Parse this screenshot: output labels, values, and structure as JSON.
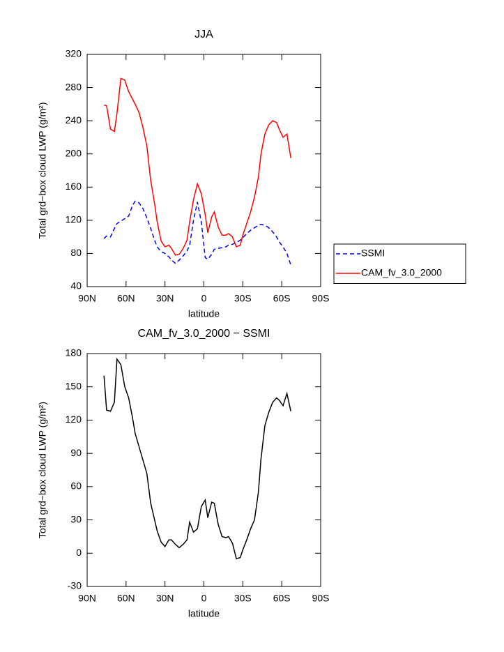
{
  "chart_data": [
    {
      "type": "line",
      "title": "JJA",
      "xlabel": "latitude",
      "ylabel": "Total grd−box cloud LWP (g/m²)",
      "x": [
        77,
        75,
        72,
        69,
        67,
        64,
        61,
        58,
        55,
        53,
        50,
        47,
        44,
        41,
        38,
        36,
        33,
        30,
        27,
        25,
        22,
        19,
        16,
        13,
        11,
        8,
        5,
        2,
        -1,
        -3,
        -6,
        -8,
        -11,
        -14,
        -17,
        -19,
        -22,
        -25,
        -28,
        -30,
        -33,
        -36,
        -39,
        -42,
        -44,
        -47,
        -50,
        -53,
        -56,
        -58,
        -61,
        -64,
        -67
      ],
      "series": [
        {
          "name": "SSMI",
          "color": "#0000ff",
          "line_style": "dashed",
          "values": [
            98,
            101,
            100,
            110,
            116,
            119,
            122,
            125,
            138,
            143,
            141,
            134,
            123,
            110,
            96,
            88,
            82,
            80,
            76,
            72,
            68,
            72,
            77,
            83,
            90,
            120,
            142,
            118,
            75,
            73,
            79,
            85,
            86,
            87,
            88,
            90,
            91,
            93,
            96,
            99,
            104,
            108,
            111,
            114,
            115,
            114,
            111,
            106,
            100,
            94,
            88,
            80,
            66
          ]
        },
        {
          "name": "CAM_fv_3.0_2000",
          "color": "#ff0000",
          "line_style": "solid",
          "values": [
            259,
            258,
            230,
            227,
            249,
            291,
            289,
            275,
            266,
            260,
            250,
            232,
            210,
            168,
            140,
            118,
            95,
            88,
            90,
            86,
            78,
            79,
            86,
            96,
            118,
            145,
            164,
            152,
            127,
            105,
            124,
            130,
            112,
            102,
            102,
            104,
            100,
            88,
            90,
            102,
            116,
            130,
            148,
            172,
            200,
            224,
            235,
            240,
            238,
            230,
            220,
            224,
            195
          ]
        }
      ],
      "xlim": [
        90,
        -90
      ],
      "xticks": [
        {
          "value": 90,
          "label": "90N"
        },
        {
          "value": 60,
          "label": "60N"
        },
        {
          "value": 30,
          "label": "30N"
        },
        0,
        {
          "value": -30,
          "label": "30S"
        },
        {
          "value": -60,
          "label": "60S"
        },
        {
          "value": -90,
          "label": "90S"
        }
      ],
      "ylim": [
        40,
        320
      ],
      "yticks": [
        40,
        80,
        120,
        160,
        200,
        240,
        280,
        320
      ],
      "legend": "right"
    },
    {
      "type": "line",
      "title": "CAM_fv_3.0_2000 − SSMI",
      "xlabel": "latitude",
      "ylabel": "Total grd−box cloud LWP (g/m²)",
      "x": [
        77,
        75,
        72,
        69,
        67,
        64,
        61,
        58,
        55,
        53,
        50,
        47,
        44,
        41,
        38,
        36,
        33,
        30,
        27,
        25,
        22,
        19,
        16,
        13,
        11,
        8,
        5,
        2,
        -1,
        -3,
        -6,
        -8,
        -11,
        -14,
        -17,
        -19,
        -22,
        -25,
        -28,
        -30,
        -33,
        -36,
        -39,
        -42,
        -44,
        -47,
        -50,
        -53,
        -56,
        -58,
        -61,
        -64,
        -67
      ],
      "values": [
        160,
        129,
        128,
        136,
        175,
        170,
        150,
        140,
        122,
        108,
        96,
        84,
        72,
        45,
        30,
        20,
        10,
        6,
        12,
        12,
        8,
        5,
        8,
        12,
        28,
        19,
        22,
        42,
        48,
        32,
        46,
        45,
        26,
        15,
        14,
        15,
        9,
        -5,
        -4,
        3,
        12,
        22,
        30,
        55,
        85,
        115,
        127,
        136,
        140,
        138,
        133,
        144,
        128
      ],
      "color": "#000000",
      "xlim": [
        90,
        -90
      ],
      "xticks": [
        {
          "value": 90,
          "label": "90N"
        },
        {
          "value": 60,
          "label": "60N"
        },
        {
          "value": 30,
          "label": "30N"
        },
        0,
        {
          "value": -30,
          "label": "30S"
        },
        {
          "value": -60,
          "label": "60S"
        },
        {
          "value": -90,
          "label": "90S"
        }
      ],
      "ylim": [
        -30,
        180
      ],
      "yticks": [
        -30,
        0,
        30,
        60,
        90,
        120,
        150,
        180
      ]
    }
  ]
}
